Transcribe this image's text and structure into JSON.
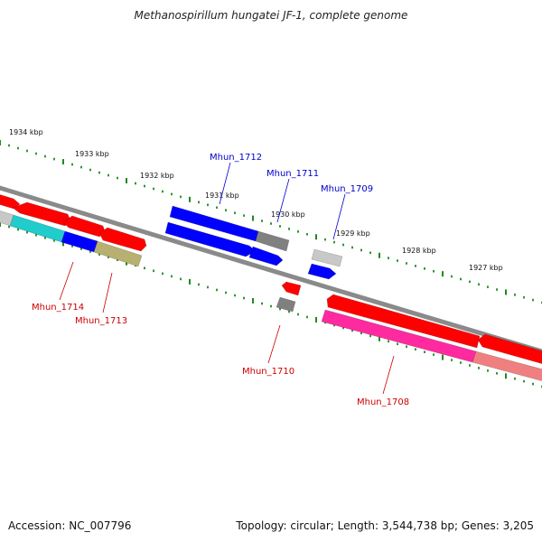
{
  "title": "Methanospirillum hungatei JF-1, complete genome",
  "footer": {
    "accession_label": "Accession:",
    "accession": "NC_007796",
    "summary": "Topology: circular; Length: 3,544,738 bp; Genes: 3,205"
  },
  "colors": {
    "backbone": "#8a8a8a",
    "tick": "#1e8a1e",
    "label_forward": "#0000cc",
    "label_reverse": "#cc0000",
    "red": "#ff0000",
    "blue": "#0000ff",
    "gray": "#808080",
    "light_gray": "#c8c8c8",
    "cyan": "#20cccc",
    "olive": "#b8b070",
    "magenta": "#ff2aa0",
    "pink": "#f08080"
  },
  "scale_labels": [
    "1934 kbp",
    "1933 kbp",
    "1932 kbp",
    "1931 kbp",
    "1930 kbp",
    "1929 kbp",
    "1928 kbp",
    "1927 kbp"
  ],
  "gene_labels": [
    {
      "text": "Mhun_1712",
      "strand": "forward"
    },
    {
      "text": "Mhun_1711",
      "strand": "forward"
    },
    {
      "text": "Mhun_1709",
      "strand": "forward"
    },
    {
      "text": "Mhun_1714",
      "strand": "reverse"
    },
    {
      "text": "Mhun_1713",
      "strand": "reverse"
    },
    {
      "text": "Mhun_1710",
      "strand": "reverse"
    },
    {
      "text": "Mhun_1708",
      "strand": "reverse"
    }
  ]
}
